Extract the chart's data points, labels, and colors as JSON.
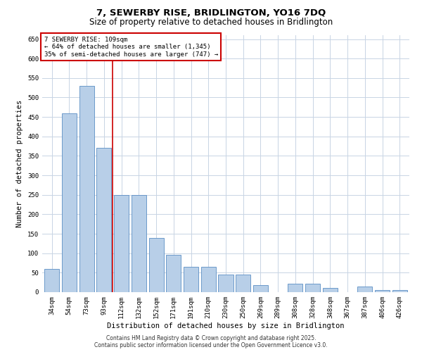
{
  "title": "7, SEWERBY RISE, BRIDLINGTON, YO16 7DQ",
  "subtitle": "Size of property relative to detached houses in Bridlington",
  "xlabel": "Distribution of detached houses by size in Bridlington",
  "ylabel": "Number of detached properties",
  "categories": [
    "34sqm",
    "54sqm",
    "73sqm",
    "93sqm",
    "112sqm",
    "132sqm",
    "152sqm",
    "171sqm",
    "191sqm",
    "210sqm",
    "230sqm",
    "250sqm",
    "269sqm",
    "289sqm",
    "308sqm",
    "328sqm",
    "348sqm",
    "367sqm",
    "387sqm",
    "406sqm",
    "426sqm"
  ],
  "values": [
    60,
    460,
    530,
    370,
    250,
    250,
    140,
    95,
    65,
    65,
    45,
    45,
    18,
    0,
    22,
    22,
    10,
    0,
    15,
    5,
    5
  ],
  "bar_color": "#b8cfe8",
  "bar_edge_color": "#5b8ec4",
  "grid_color": "#c8d4e4",
  "annotation_text_line1": "7 SEWERBY RISE: 109sqm",
  "annotation_text_line2": "← 64% of detached houses are smaller (1,345)",
  "annotation_text_line3": "35% of semi-detached houses are larger (747) →",
  "annotation_box_color": "#cc0000",
  "property_line_color": "#cc0000",
  "ylim": [
    0,
    660
  ],
  "yticks": [
    0,
    50,
    100,
    150,
    200,
    250,
    300,
    350,
    400,
    450,
    500,
    550,
    600,
    650
  ],
  "footer_line1": "Contains HM Land Registry data © Crown copyright and database right 2025.",
  "footer_line2": "Contains public sector information licensed under the Open Government Licence v3.0.",
  "title_fontsize": 9.5,
  "subtitle_fontsize": 8.5,
  "xlabel_fontsize": 7.5,
  "ylabel_fontsize": 7.5,
  "tick_fontsize": 6.5,
  "annotation_fontsize": 6.5,
  "footer_fontsize": 5.5
}
